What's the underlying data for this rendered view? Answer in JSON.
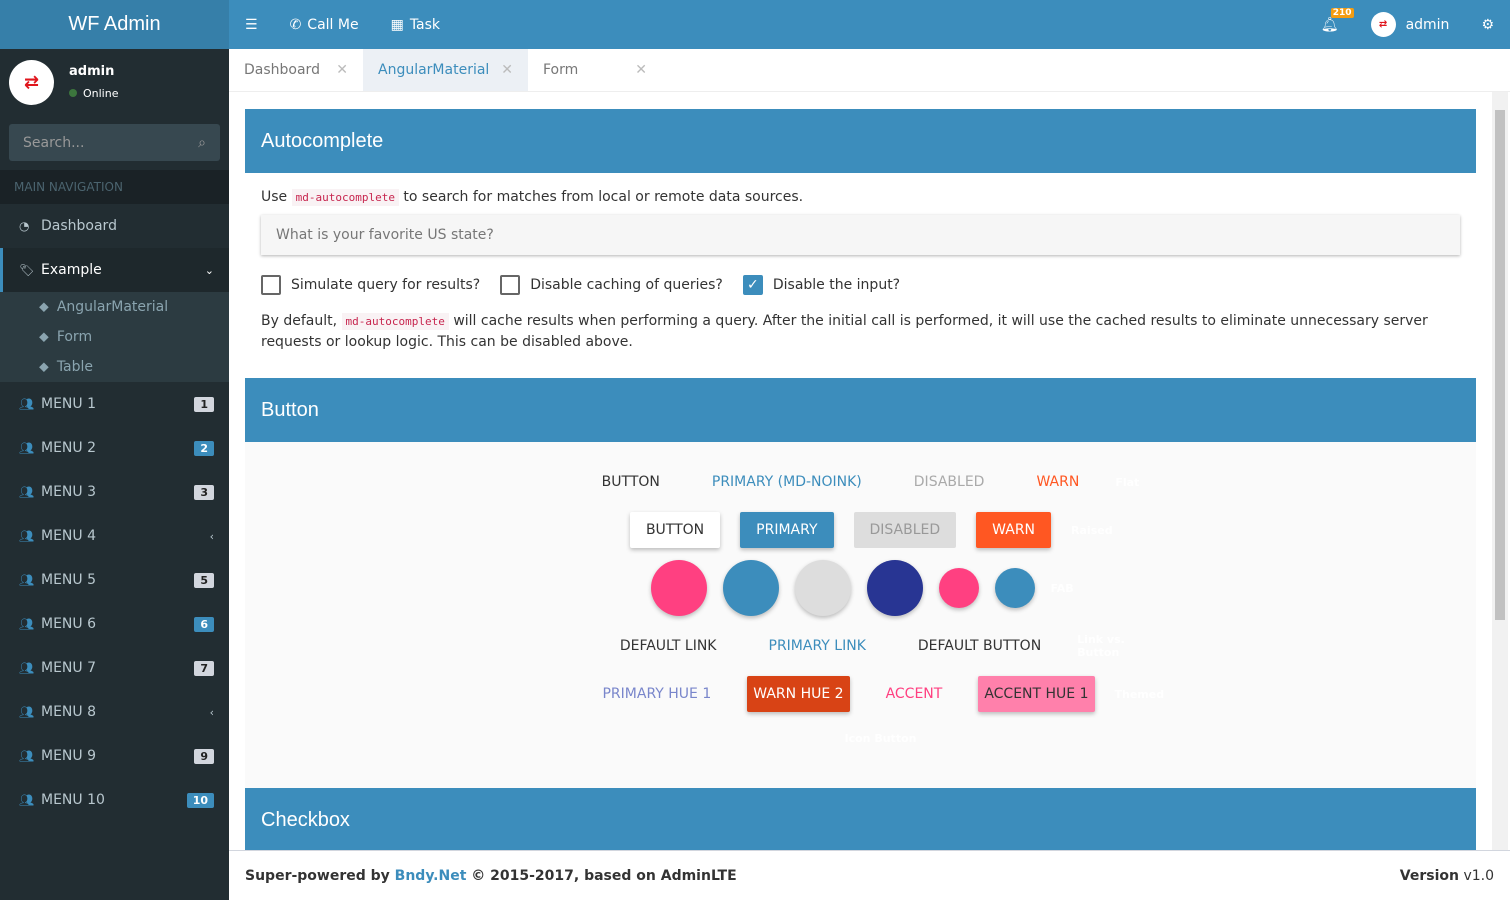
{
  "app": {
    "title": "WF Admin"
  },
  "topbar": {
    "call": "Call Me",
    "task": "Task",
    "notif_count": "210",
    "user": "admin"
  },
  "user": {
    "name": "admin",
    "status": "Online"
  },
  "search": {
    "placeholder": "Search..."
  },
  "nav": {
    "header": "MAIN NAVIGATION",
    "dashboard": "Dashboard",
    "example": "Example",
    "sub": [
      "AngularMaterial",
      "Form",
      "Table"
    ],
    "menus": [
      {
        "label": "MENU 1",
        "badge": "1"
      },
      {
        "label": "MENU 2",
        "badge": "2"
      },
      {
        "label": "MENU 3",
        "badge": "3"
      },
      {
        "label": "MENU 4",
        "badge": null
      },
      {
        "label": "MENU 5",
        "badge": "5"
      },
      {
        "label": "MENU 6",
        "badge": "6"
      },
      {
        "label": "MENU 7",
        "badge": "7"
      },
      {
        "label": "MENU 8",
        "badge": null
      },
      {
        "label": "MENU 9",
        "badge": "9"
      },
      {
        "label": "MENU 10",
        "badge": "10"
      }
    ]
  },
  "tabs": [
    "Dashboard",
    "AngularMaterial",
    "Form"
  ],
  "autocomplete": {
    "title": "Autocomplete",
    "intro_pre": "Use",
    "code": "md-autocomplete",
    "intro_post": "to search for matches from local or remote data sources.",
    "placeholder": "What is your favorite US state?",
    "checks": [
      {
        "label": "Simulate query for results?",
        "checked": false
      },
      {
        "label": "Disable caching of queries?",
        "checked": false
      },
      {
        "label": "Disable the input?",
        "checked": true
      }
    ],
    "desc_pre": "By default,",
    "desc_post": "will cache results when performing a query. After the initial call is performed, it will use the cached results to eliminate unnecessary server requests or lookup logic. This can be disabled above."
  },
  "button": {
    "title": "Button",
    "flat": [
      "Button",
      "Primary (md-noink)",
      "Disabled",
      "Warn"
    ],
    "flat_label": "Flat",
    "raised": [
      "Button",
      "Primary",
      "Disabled",
      "Warn"
    ],
    "raised_label": "Raised",
    "fab_label": "FAB",
    "links": [
      "Default Link",
      "Primary Link",
      "Default Button"
    ],
    "links_label": "Link vs. Button",
    "themed": [
      "Primary Hue 1",
      "Warn Hue 2",
      "Accent",
      "Accent Hue 1"
    ],
    "themed_label": "Themed",
    "icon_label": "Icon Button"
  },
  "checkbox": {
    "title": "Checkbox"
  },
  "footer": {
    "pre": "Super-powered by",
    "link": "Bndy.Net",
    "post": "© 2015-2017, based on AdminLTE",
    "version_label": "Version",
    "version": "v1.0"
  },
  "colors": {
    "primary": "#3c8dbc",
    "warn": "#ff5722",
    "accent": "#ff4081",
    "indigo": "#283593"
  }
}
